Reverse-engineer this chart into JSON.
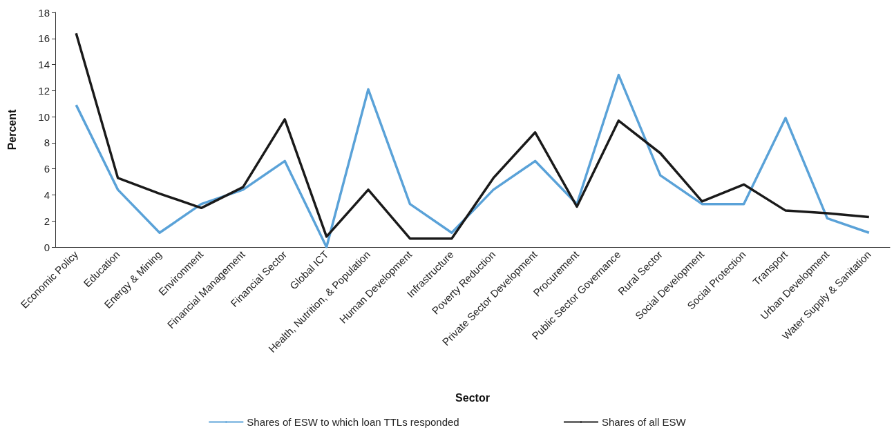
{
  "chart_data": {
    "type": "line",
    "xlabel": "Sector",
    "ylabel": "Percent",
    "categories": [
      "Economic Policy",
      "Education",
      "Energy & Mining",
      "Environment",
      "Financial Management",
      "Financial Sector",
      "Global ICT",
      "Health, Nutrition, & Population",
      "Human Development",
      "Infrastructure",
      "Poverty Reduction",
      "Private Sector Development",
      "Procurement",
      "Public Sector Governance",
      "Rural Sector",
      "Social Development",
      "Social Protection",
      "Transport",
      "Urban Development",
      "Water Supply & Sanitation"
    ],
    "series": [
      {
        "name": "Shares of ESW to which loan TTLs responded",
        "color": "#5aa2d8",
        "values": [
          10.9,
          4.4,
          1.1,
          3.3,
          4.4,
          6.6,
          0,
          12.1,
          3.3,
          1.1,
          4.4,
          6.6,
          3.3,
          13.2,
          5.5,
          3.3,
          3.3,
          9.9,
          2.2,
          1.1
        ]
      },
      {
        "name": "Shares of all ESW",
        "color": "#1a1a1a",
        "values": [
          16.4,
          5.3,
          4.1,
          3.0,
          4.6,
          9.8,
          0.8,
          4.4,
          0.65,
          0.65,
          5.3,
          8.8,
          3.1,
          9.7,
          7.2,
          3.5,
          4.8,
          2.8,
          2.6,
          2.3
        ]
      }
    ],
    "ylim": [
      0,
      18
    ],
    "yticks": [
      0,
      2,
      4,
      6,
      8,
      10,
      12,
      14,
      16,
      18
    ],
    "grid": false,
    "legend": "bottom",
    "marker": "none",
    "line_style": "solid"
  }
}
